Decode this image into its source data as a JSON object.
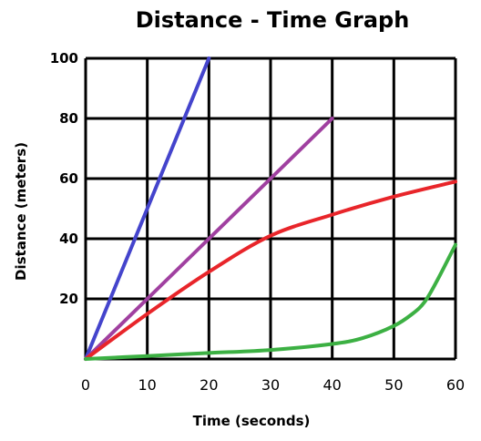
{
  "chart_data": {
    "type": "line",
    "title": "Distance - Time Graph",
    "xlabel": "Time (seconds)",
    "ylabel": "Distance (meters)",
    "xlim": [
      0,
      60
    ],
    "ylim": [
      0,
      100
    ],
    "x_ticks": [
      "0",
      "10",
      "20",
      "30",
      "40",
      "50",
      "60"
    ],
    "y_ticks": [
      "20",
      "40",
      "60",
      "80",
      "100"
    ],
    "grid": true,
    "legend": "none",
    "series": [
      {
        "color": "#4444cc",
        "points": [
          [
            0,
            0
          ],
          [
            20,
            100
          ]
        ]
      },
      {
        "color": "#a040a0",
        "points": [
          [
            0,
            0
          ],
          [
            10,
            20
          ],
          [
            20,
            40
          ],
          [
            30,
            60
          ],
          [
            40,
            80
          ]
        ]
      },
      {
        "color": "#e8252a",
        "points": [
          [
            0,
            0
          ],
          [
            10,
            15
          ],
          [
            20,
            29
          ],
          [
            30,
            41
          ],
          [
            40,
            48
          ],
          [
            50,
            54
          ],
          [
            60,
            59
          ]
        ]
      },
      {
        "color": "#3cb043",
        "points": [
          [
            0,
            0
          ],
          [
            10,
            1
          ],
          [
            20,
            2
          ],
          [
            30,
            3
          ],
          [
            40,
            5
          ],
          [
            45,
            7
          ],
          [
            50,
            11
          ],
          [
            53,
            15
          ],
          [
            55,
            19
          ],
          [
            57,
            26
          ],
          [
            60,
            38
          ]
        ]
      }
    ]
  }
}
